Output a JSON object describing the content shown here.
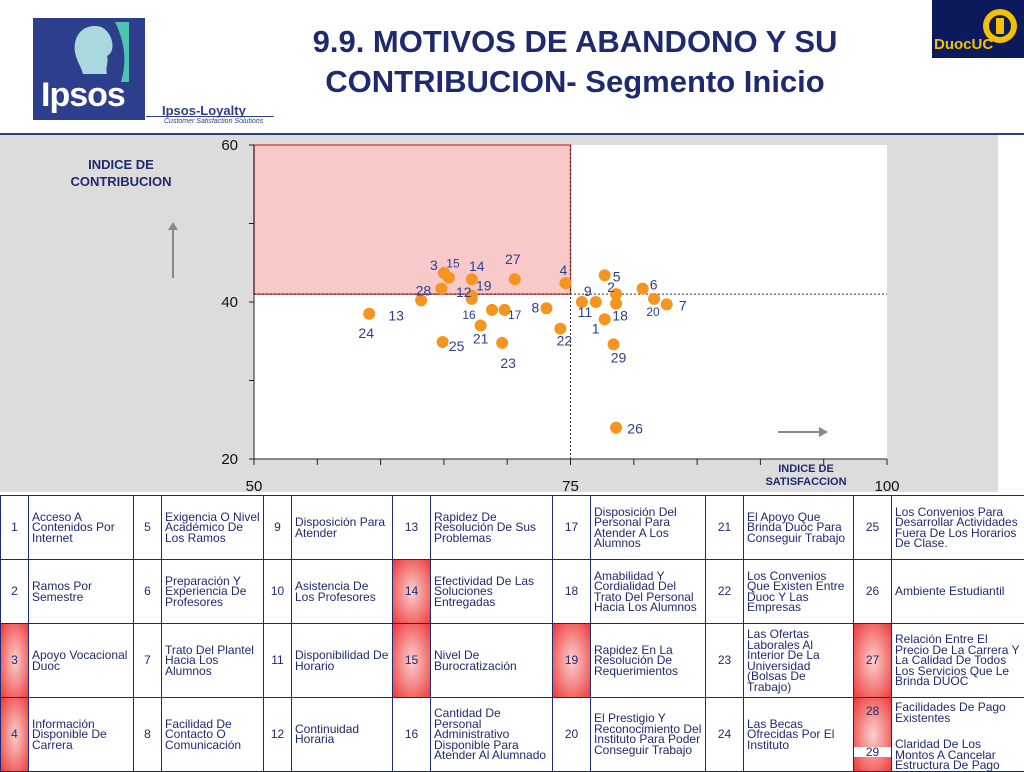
{
  "header": {
    "brand": "Ipsos",
    "loyalty": "Ipsos-Loyalty",
    "loyalty_tagline": "Customer Satisfaction Solutions",
    "title_line1": "9.9. MOTIVOS DE ABANDONO Y SU",
    "title_line2": "CONTRIBUCION- Segmento Inicio",
    "right_logo": "DuocUC"
  },
  "chart_data": {
    "type": "scatter",
    "ylabel": "INDICE DE CONTRIBUCION",
    "xlabel": "INDICE DE SATISFACCION",
    "xlim": [
      50,
      100
    ],
    "ylim": [
      20,
      60
    ],
    "x_ticks": [
      "50",
      "75",
      "100"
    ],
    "y_ticks": [
      "20",
      "40",
      "60"
    ],
    "reference_lines": {
      "x": 75,
      "y": 41
    },
    "highlight_zone": {
      "x": [
        50,
        75
      ],
      "y": [
        41,
        60
      ],
      "color": "#f9c9c9"
    },
    "point_color": "#f5941e",
    "label_color": "#2d3f8c",
    "points": [
      {
        "label": "1",
        "x": 77.7,
        "y": 37.8
      },
      {
        "label": "2",
        "x": 78.6,
        "y": 41.0
      },
      {
        "label": "3",
        "x": 65.0,
        "y": 43.7
      },
      {
        "label": "4",
        "x": 74.6,
        "y": 42.4
      },
      {
        "label": "5",
        "x": 77.7,
        "y": 43.4
      },
      {
        "label": "6",
        "x": 80.7,
        "y": 41.7
      },
      {
        "label": "7",
        "x": 82.6,
        "y": 39.7
      },
      {
        "label": "8",
        "x": 73.1,
        "y": 39.2
      },
      {
        "label": "9",
        "x": 77.0,
        "y": 40.0
      },
      {
        "label": "11",
        "x": 75.9,
        "y": 40.0
      },
      {
        "label": "12",
        "x": 67.2,
        "y": 40.4
      },
      {
        "label": "13",
        "x": 63.2,
        "y": 40.2
      },
      {
        "label": "14",
        "x": 67.2,
        "y": 42.9
      },
      {
        "label": "15",
        "x": 65.4,
        "y": 43.1
      },
      {
        "label": "16",
        "x": 68.8,
        "y": 39.0
      },
      {
        "label": "17",
        "x": 69.8,
        "y": 39.0
      },
      {
        "label": "18",
        "x": 78.6,
        "y": 39.8
      },
      {
        "label": "19",
        "x": 67.2,
        "y": 40.8
      },
      {
        "label": "20",
        "x": 81.6,
        "y": 40.4
      },
      {
        "label": "21",
        "x": 67.9,
        "y": 37.0
      },
      {
        "label": "22",
        "x": 74.2,
        "y": 36.6
      },
      {
        "label": "23",
        "x": 69.6,
        "y": 34.8
      },
      {
        "label": "24",
        "x": 59.1,
        "y": 38.5
      },
      {
        "label": "25",
        "x": 64.9,
        "y": 34.9
      },
      {
        "label": "26",
        "x": 78.6,
        "y": 24.0
      },
      {
        "label": "27",
        "x": 70.6,
        "y": 42.9
      },
      {
        "label": "28",
        "x": 64.8,
        "y": 41.7
      },
      {
        "label": "29",
        "x": 78.4,
        "y": 34.6
      }
    ]
  },
  "legend": {
    "rows": [
      [
        {
          "num": "1",
          "text": "Acceso A Contenidos Por Internet",
          "hl": false
        },
        {
          "num": "5",
          "text": "Exigencia O Nivel Académico De Los Ramos",
          "hl": false
        },
        {
          "num": "9",
          "text": "Disposición Para Atender",
          "hl": false
        },
        {
          "num": "13",
          "text": "Rapidez De Resolución De Sus Problemas",
          "hl": false
        },
        {
          "num": "17",
          "text": "Disposición Del Personal Para Atender A Los Alumnos",
          "hl": false
        },
        {
          "num": "21",
          "text": "El Apoyo Que Brinda Duoc Para Conseguir Trabajo",
          "hl": false
        },
        {
          "num": "25",
          "text": "Los Convenios Para Desarrollar Actividades Fuera De Los Horarios De Clase.",
          "hl": false
        }
      ],
      [
        {
          "num": "2",
          "text": "Ramos Por Semestre",
          "hl": false
        },
        {
          "num": "6",
          "text": "Preparación Y Experiencia De Profesores",
          "hl": false
        },
        {
          "num": "10",
          "text": "Asistencia De Los Profesores",
          "hl": false
        },
        {
          "num": "14",
          "text": "Efectividad De Las Soluciones Entregadas",
          "hl": true
        },
        {
          "num": "18",
          "text": "Amabilidad Y Cordialidad Del Trato Del Personal Hacia Los Alumnos",
          "hl": false
        },
        {
          "num": "22",
          "text": "Los Convenios Que Existen Entre Duoc Y Las Empresas",
          "hl": false
        },
        {
          "num": "26",
          "text": "Ambiente Estudiantil",
          "hl": false
        }
      ],
      [
        {
          "num": "3",
          "text": "Apoyo Vocacional Duoc",
          "hl": true
        },
        {
          "num": "7",
          "text": "Trato Del Plantel Hacia Los Alumnos",
          "hl": false
        },
        {
          "num": "11",
          "text": "Disponibilidad De Horario",
          "hl": false
        },
        {
          "num": "15",
          "text": "Nivel De Burocratización",
          "hl": true
        },
        {
          "num": "19",
          "text": "Rapidez En La Resolución De Requerimientos",
          "hl": true
        },
        {
          "num": "23",
          "text": "Las Ofertas Laborales Al Interior De La Universidad (Bolsas De Trabajo)",
          "hl": false
        },
        {
          "num": "27",
          "text": "Relación Entre El Precio De La Carrera Y La Calidad De Todos Los Servicios Que Le Brinda DUOC",
          "hl": true
        }
      ],
      [
        {
          "num": "4",
          "text": "Información Disponible De Carrera",
          "hl": true
        },
        {
          "num": "8",
          "text": "Facilidad De Contacto O Comunicación",
          "hl": false
        },
        {
          "num": "12",
          "text": "Continuidad Horaria",
          "hl": false
        },
        {
          "num": "16",
          "text": "Cantidad De Personal Administrativo Disponible Para Atender Al Alumnado",
          "hl": false
        },
        {
          "num": "20",
          "text": "El Prestigio Y Reconocimiento Del Instituto Para Poder Conseguir Trabajo",
          "hl": false
        },
        {
          "num": "24",
          "text": "Las Becas Ofrecidas Por El Instituto",
          "hl": false
        },
        {
          "num": "28",
          "text": "Facilidades De Pago Existentes",
          "hl": true,
          "extra_num": "29",
          "extra_text": "Claridad De Los Montos A Cancelar Estructura De Pago"
        }
      ]
    ]
  }
}
